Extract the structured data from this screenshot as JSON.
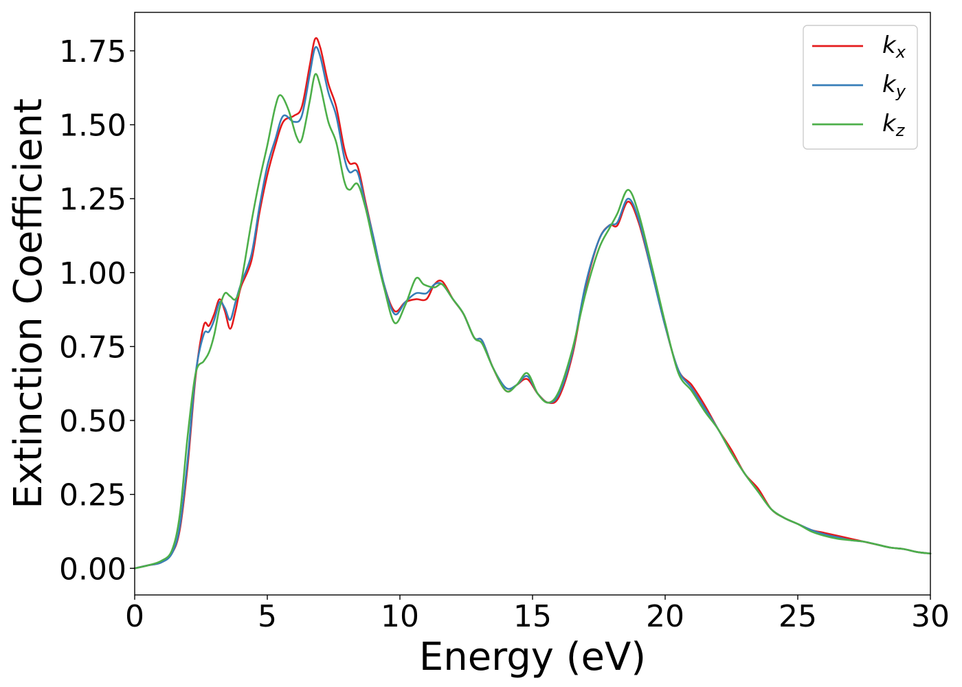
{
  "chart_data": {
    "type": "line",
    "xlabel": "Energy (eV)",
    "ylabel": "Extinction Coefficient",
    "xlim": [
      0,
      30
    ],
    "ylim": [
      -0.09,
      1.88
    ],
    "xticks": [
      0,
      5,
      10,
      15,
      20,
      25,
      30
    ],
    "xtick_labels": [
      "0",
      "5",
      "10",
      "15",
      "20",
      "25",
      "30"
    ],
    "yticks": [
      0.0,
      0.25,
      0.5,
      0.75,
      1.0,
      1.25,
      1.5,
      1.75
    ],
    "ytick_labels": [
      "0.00",
      "0.25",
      "0.50",
      "0.75",
      "1.00",
      "1.25",
      "1.50",
      "1.75"
    ],
    "grid": false,
    "legend_position": "top-right",
    "series": [
      {
        "name": "k_x",
        "label_main": "k",
        "label_sub": "x",
        "color": "#e41a1c",
        "points": [
          [
            0,
            0.0
          ],
          [
            0.5,
            0.01
          ],
          [
            1.0,
            0.02
          ],
          [
            1.4,
            0.05
          ],
          [
            1.7,
            0.13
          ],
          [
            2.0,
            0.35
          ],
          [
            2.3,
            0.65
          ],
          [
            2.6,
            0.82
          ],
          [
            2.8,
            0.82
          ],
          [
            3.0,
            0.86
          ],
          [
            3.2,
            0.91
          ],
          [
            3.4,
            0.87
          ],
          [
            3.6,
            0.81
          ],
          [
            3.8,
            0.87
          ],
          [
            4.0,
            0.95
          ],
          [
            4.4,
            1.04
          ],
          [
            4.7,
            1.2
          ],
          [
            5.0,
            1.33
          ],
          [
            5.3,
            1.43
          ],
          [
            5.6,
            1.51
          ],
          [
            6.0,
            1.53
          ],
          [
            6.3,
            1.56
          ],
          [
            6.6,
            1.7
          ],
          [
            6.8,
            1.79
          ],
          [
            7.0,
            1.76
          ],
          [
            7.3,
            1.64
          ],
          [
            7.6,
            1.56
          ],
          [
            7.9,
            1.42
          ],
          [
            8.1,
            1.37
          ],
          [
            8.4,
            1.36
          ],
          [
            8.7,
            1.24
          ],
          [
            9.0,
            1.12
          ],
          [
            9.4,
            0.96
          ],
          [
            9.8,
            0.87
          ],
          [
            10.2,
            0.9
          ],
          [
            10.6,
            0.91
          ],
          [
            11.0,
            0.91
          ],
          [
            11.3,
            0.96
          ],
          [
            11.6,
            0.97
          ],
          [
            12.0,
            0.91
          ],
          [
            12.4,
            0.86
          ],
          [
            12.8,
            0.78
          ],
          [
            13.1,
            0.77
          ],
          [
            13.5,
            0.68
          ],
          [
            14.0,
            0.6
          ],
          [
            14.4,
            0.62
          ],
          [
            14.8,
            0.64
          ],
          [
            15.2,
            0.59
          ],
          [
            15.6,
            0.56
          ],
          [
            16.0,
            0.58
          ],
          [
            16.5,
            0.72
          ],
          [
            17.0,
            0.95
          ],
          [
            17.5,
            1.11
          ],
          [
            17.9,
            1.16
          ],
          [
            18.2,
            1.16
          ],
          [
            18.6,
            1.24
          ],
          [
            19.0,
            1.17
          ],
          [
            19.5,
            1.0
          ],
          [
            20.0,
            0.82
          ],
          [
            20.5,
            0.67
          ],
          [
            21.0,
            0.62
          ],
          [
            21.5,
            0.55
          ],
          [
            22.0,
            0.47
          ],
          [
            22.5,
            0.4
          ],
          [
            23.0,
            0.32
          ],
          [
            23.5,
            0.27
          ],
          [
            24.0,
            0.2
          ],
          [
            24.5,
            0.17
          ],
          [
            25.0,
            0.15
          ],
          [
            25.5,
            0.13
          ],
          [
            26.0,
            0.12
          ],
          [
            26.5,
            0.11
          ],
          [
            27.0,
            0.1
          ],
          [
            27.5,
            0.09
          ],
          [
            28.0,
            0.08
          ],
          [
            28.5,
            0.07
          ],
          [
            29.0,
            0.065
          ],
          [
            29.5,
            0.055
          ],
          [
            30.0,
            0.05
          ]
        ]
      },
      {
        "name": "k_y",
        "label_main": "k",
        "label_sub": "y",
        "color": "#377eb8",
        "points": [
          [
            0,
            0.0
          ],
          [
            0.5,
            0.01
          ],
          [
            1.0,
            0.02
          ],
          [
            1.4,
            0.05
          ],
          [
            1.7,
            0.14
          ],
          [
            2.0,
            0.37
          ],
          [
            2.3,
            0.66
          ],
          [
            2.6,
            0.79
          ],
          [
            2.8,
            0.8
          ],
          [
            3.0,
            0.84
          ],
          [
            3.2,
            0.9
          ],
          [
            3.4,
            0.88
          ],
          [
            3.6,
            0.84
          ],
          [
            3.8,
            0.9
          ],
          [
            4.0,
            0.96
          ],
          [
            4.4,
            1.06
          ],
          [
            4.7,
            1.22
          ],
          [
            5.0,
            1.36
          ],
          [
            5.3,
            1.45
          ],
          [
            5.6,
            1.53
          ],
          [
            6.0,
            1.51
          ],
          [
            6.3,
            1.53
          ],
          [
            6.6,
            1.67
          ],
          [
            6.8,
            1.76
          ],
          [
            7.0,
            1.73
          ],
          [
            7.3,
            1.61
          ],
          [
            7.6,
            1.53
          ],
          [
            7.9,
            1.39
          ],
          [
            8.1,
            1.34
          ],
          [
            8.4,
            1.34
          ],
          [
            8.7,
            1.23
          ],
          [
            9.0,
            1.12
          ],
          [
            9.4,
            0.96
          ],
          [
            9.8,
            0.86
          ],
          [
            10.2,
            0.9
          ],
          [
            10.6,
            0.93
          ],
          [
            11.0,
            0.93
          ],
          [
            11.3,
            0.96
          ],
          [
            11.6,
            0.96
          ],
          [
            12.0,
            0.91
          ],
          [
            12.4,
            0.86
          ],
          [
            12.8,
            0.78
          ],
          [
            13.1,
            0.77
          ],
          [
            13.5,
            0.68
          ],
          [
            14.0,
            0.61
          ],
          [
            14.4,
            0.62
          ],
          [
            14.8,
            0.65
          ],
          [
            15.2,
            0.59
          ],
          [
            15.6,
            0.56
          ],
          [
            16.0,
            0.59
          ],
          [
            16.5,
            0.73
          ],
          [
            17.0,
            0.96
          ],
          [
            17.5,
            1.11
          ],
          [
            17.9,
            1.16
          ],
          [
            18.2,
            1.17
          ],
          [
            18.6,
            1.25
          ],
          [
            19.0,
            1.18
          ],
          [
            19.5,
            1.0
          ],
          [
            20.0,
            0.82
          ],
          [
            20.5,
            0.67
          ],
          [
            21.0,
            0.61
          ],
          [
            21.5,
            0.54
          ],
          [
            22.0,
            0.47
          ],
          [
            22.5,
            0.39
          ],
          [
            23.0,
            0.32
          ],
          [
            23.5,
            0.26
          ],
          [
            24.0,
            0.2
          ],
          [
            24.5,
            0.17
          ],
          [
            25.0,
            0.15
          ],
          [
            25.5,
            0.13
          ],
          [
            26.0,
            0.115
          ],
          [
            26.5,
            0.105
          ],
          [
            27.0,
            0.095
          ],
          [
            27.5,
            0.09
          ],
          [
            28.0,
            0.08
          ],
          [
            28.5,
            0.07
          ],
          [
            29.0,
            0.065
          ],
          [
            29.5,
            0.055
          ],
          [
            30.0,
            0.05
          ]
        ]
      },
      {
        "name": "k_z",
        "label_main": "k",
        "label_sub": "z",
        "color": "#4daf4a",
        "points": [
          [
            0,
            0.0
          ],
          [
            0.5,
            0.01
          ],
          [
            1.0,
            0.025
          ],
          [
            1.4,
            0.06
          ],
          [
            1.7,
            0.18
          ],
          [
            2.0,
            0.45
          ],
          [
            2.3,
            0.66
          ],
          [
            2.6,
            0.7
          ],
          [
            2.8,
            0.73
          ],
          [
            3.0,
            0.79
          ],
          [
            3.2,
            0.88
          ],
          [
            3.4,
            0.93
          ],
          [
            3.6,
            0.92
          ],
          [
            3.8,
            0.91
          ],
          [
            4.0,
            0.96
          ],
          [
            4.4,
            1.17
          ],
          [
            4.7,
            1.31
          ],
          [
            5.0,
            1.43
          ],
          [
            5.3,
            1.56
          ],
          [
            5.5,
            1.6
          ],
          [
            5.8,
            1.55
          ],
          [
            6.1,
            1.46
          ],
          [
            6.3,
            1.45
          ],
          [
            6.6,
            1.58
          ],
          [
            6.8,
            1.67
          ],
          [
            7.0,
            1.63
          ],
          [
            7.3,
            1.51
          ],
          [
            7.6,
            1.44
          ],
          [
            7.9,
            1.31
          ],
          [
            8.1,
            1.28
          ],
          [
            8.4,
            1.3
          ],
          [
            8.7,
            1.22
          ],
          [
            9.0,
            1.1
          ],
          [
            9.4,
            0.95
          ],
          [
            9.8,
            0.83
          ],
          [
            10.2,
            0.89
          ],
          [
            10.6,
            0.98
          ],
          [
            10.9,
            0.96
          ],
          [
            11.3,
            0.95
          ],
          [
            11.6,
            0.96
          ],
          [
            12.0,
            0.91
          ],
          [
            12.4,
            0.86
          ],
          [
            12.8,
            0.78
          ],
          [
            13.1,
            0.76
          ],
          [
            13.5,
            0.68
          ],
          [
            14.0,
            0.6
          ],
          [
            14.4,
            0.62
          ],
          [
            14.8,
            0.66
          ],
          [
            15.2,
            0.59
          ],
          [
            15.6,
            0.56
          ],
          [
            16.0,
            0.6
          ],
          [
            16.5,
            0.74
          ],
          [
            17.0,
            0.93
          ],
          [
            17.5,
            1.08
          ],
          [
            17.9,
            1.15
          ],
          [
            18.2,
            1.2
          ],
          [
            18.6,
            1.28
          ],
          [
            19.0,
            1.2
          ],
          [
            19.5,
            1.02
          ],
          [
            20.0,
            0.83
          ],
          [
            20.5,
            0.66
          ],
          [
            21.0,
            0.6
          ],
          [
            21.5,
            0.53
          ],
          [
            22.0,
            0.47
          ],
          [
            22.5,
            0.39
          ],
          [
            23.0,
            0.32
          ],
          [
            23.5,
            0.26
          ],
          [
            24.0,
            0.2
          ],
          [
            24.5,
            0.17
          ],
          [
            25.0,
            0.15
          ],
          [
            25.5,
            0.125
          ],
          [
            26.0,
            0.11
          ],
          [
            26.5,
            0.1
          ],
          [
            27.0,
            0.095
          ],
          [
            27.5,
            0.09
          ],
          [
            28.0,
            0.08
          ],
          [
            28.5,
            0.07
          ],
          [
            29.0,
            0.065
          ],
          [
            29.5,
            0.055
          ],
          [
            30.0,
            0.05
          ]
        ]
      }
    ]
  }
}
